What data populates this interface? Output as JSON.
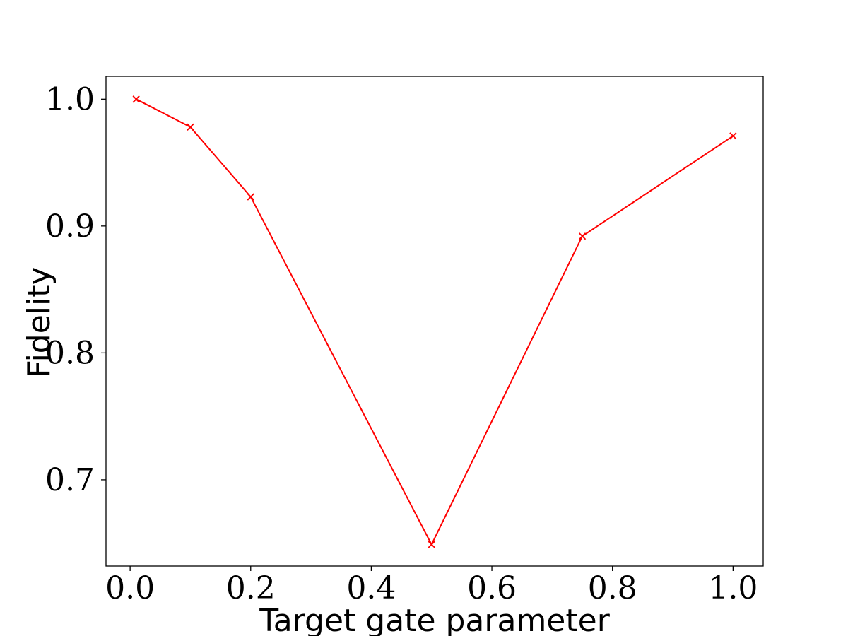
{
  "chart_data": {
    "type": "line",
    "title": "",
    "xlabel": "Target gate parameter",
    "ylabel": "Fidelity",
    "xlim": [
      -0.04,
      1.05
    ],
    "ylim": [
      0.632,
      1.018
    ],
    "x_ticks": [
      0.0,
      0.2,
      0.4,
      0.6,
      0.8,
      1.0
    ],
    "x_tick_labels": [
      "0.0",
      "0.2",
      "0.4",
      "0.6",
      "0.8",
      "1.0"
    ],
    "y_ticks": [
      0.7,
      0.8,
      0.9,
      1.0
    ],
    "y_tick_labels": [
      "0.7",
      "0.8",
      "0.9",
      "1.0"
    ],
    "grid": false,
    "series": [
      {
        "color": "#ff0000",
        "marker": "x",
        "x": [
          0.01,
          0.1,
          0.2,
          0.5,
          0.75,
          1.0
        ],
        "y": [
          1.0,
          0.978,
          0.923,
          0.649,
          0.892,
          0.971
        ]
      }
    ]
  }
}
